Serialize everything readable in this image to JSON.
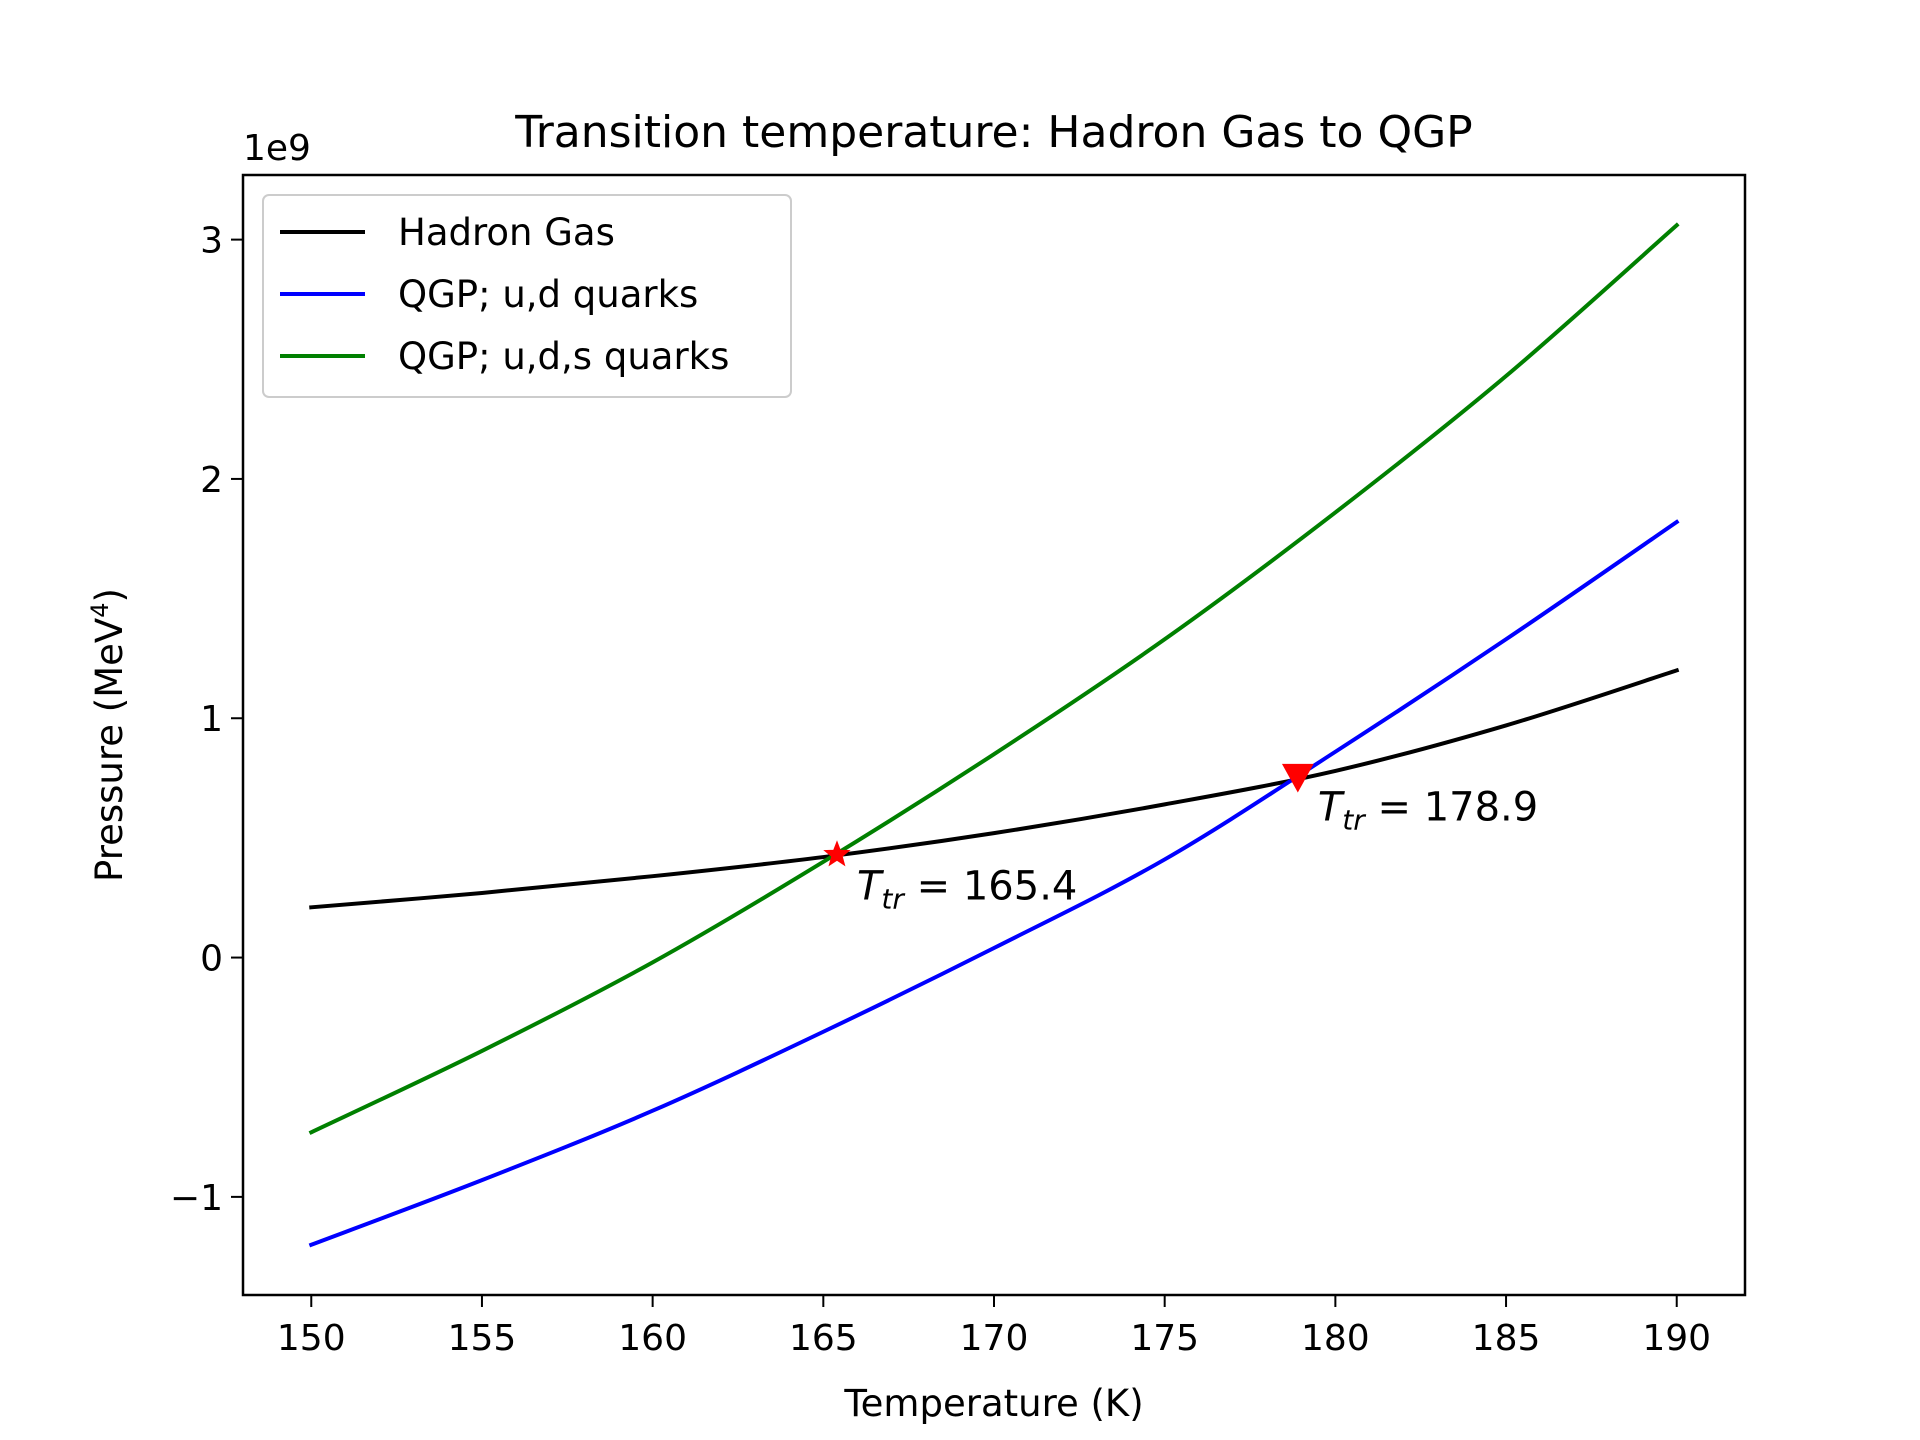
{
  "chart_data": {
    "type": "line",
    "title": "Transition temperature: Hadron Gas to QGP",
    "xlabel": "Temperature (K)",
    "ylabel": "Pressure (MeV",
    "ylabel_superscript": "4",
    "ylabel_close": ")",
    "y_offset_label": "1e9",
    "xlim": [
      148,
      192
    ],
    "ylim": [
      -1.41,
      3.27
    ],
    "y_multiplier": 1000000000,
    "x_ticks": [
      150,
      155,
      160,
      165,
      170,
      175,
      180,
      185,
      190
    ],
    "x_tick_labels": [
      "150",
      "155",
      "160",
      "165",
      "170",
      "175",
      "180",
      "185",
      "190"
    ],
    "y_ticks": [
      -1,
      0,
      1,
      2,
      3
    ],
    "y_tick_labels": [
      "−1",
      "0",
      "1",
      "2",
      "3"
    ],
    "grid": false,
    "legend_position": "top-left",
    "series": [
      {
        "name": "Hadron Gas",
        "color": "#000000",
        "x": [
          150,
          155,
          160,
          165,
          170,
          175,
          180,
          185,
          190
        ],
        "y": [
          0.21,
          0.27,
          0.34,
          0.42,
          0.52,
          0.64,
          0.78,
          0.97,
          1.2
        ]
      },
      {
        "name": "QGP; u,d quarks",
        "color": "#0000ff",
        "x": [
          150,
          155,
          160,
          165,
          170,
          175,
          180,
          185,
          190
        ],
        "y": [
          -1.2,
          -0.93,
          -0.64,
          -0.31,
          0.04,
          0.41,
          0.86,
          1.33,
          1.82
        ]
      },
      {
        "name": "QGP; u,d,s quarks",
        "color": "#008000",
        "x": [
          150,
          155,
          160,
          165,
          170,
          175,
          180,
          185,
          190
        ],
        "y": [
          -0.73,
          -0.39,
          -0.02,
          0.4,
          0.85,
          1.33,
          1.86,
          2.43,
          3.06
        ]
      }
    ],
    "markers": [
      {
        "shape": "star",
        "color": "#ff0000",
        "x": 165.4,
        "y": 0.43
      },
      {
        "shape": "triangle-down",
        "color": "#ff0000",
        "x": 178.9,
        "y": 0.76
      }
    ],
    "annotations": [
      {
        "symbol": "T",
        "subscript": "tr",
        "text": " = 165.4",
        "x": 165.4,
        "y": 0.43
      },
      {
        "symbol": "T",
        "subscript": "tr",
        "text": " = 178.9",
        "x": 178.9,
        "y": 0.76
      }
    ]
  }
}
